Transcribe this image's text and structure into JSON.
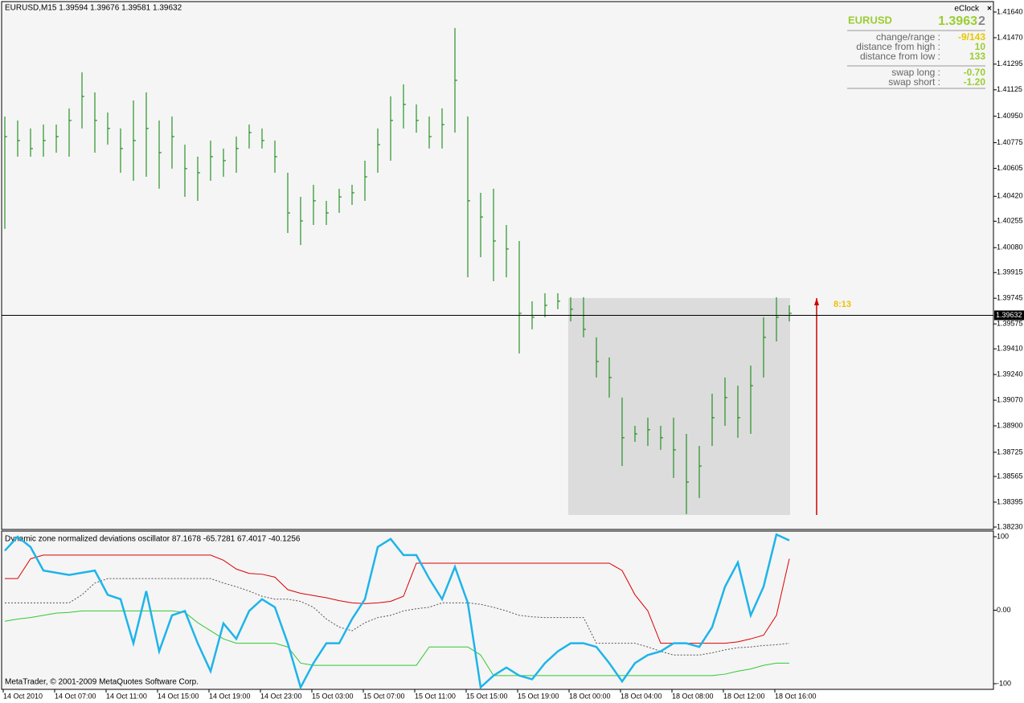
{
  "header": {
    "copyright": "MetaTrader, © 2001-2009 MetaQuotes Software Corp."
  },
  "eclock": {
    "title": "eClock",
    "close": "×",
    "symbol": "EURUSD",
    "price": "1.3963",
    "price_last": "2",
    "countdown": "8:13",
    "rows": [
      {
        "label": "change/range :",
        "value": "-9/143"
      },
      {
        "label": "distance from high :",
        "value": "10"
      },
      {
        "label": "distance from low :",
        "value": "133"
      },
      {
        "label": "swap long :",
        "value": "-0.70"
      },
      {
        "label": "swap short :",
        "value": "-1.20"
      }
    ]
  },
  "chart_data": [
    {
      "type": "ohlc",
      "title": "EURUSD,M15  1.39594 1.39676 1.39581 1.39632",
      "color": "#008000",
      "ylim": [
        1.38214,
        1.41709
      ],
      "yticks": [
        {
          "value": 1.4164,
          "label": "1.41640"
        },
        {
          "value": 1.4147,
          "label": "1.41470"
        },
        1.41295,
        1.41125,
        {
          "value": 1.4095,
          "label": "1.40950"
        },
        1.40775,
        1.40605,
        {
          "value": 1.4042,
          "label": "1.40420"
        },
        1.40255,
        {
          "value": 1.4008,
          "label": "1.40080"
        },
        1.39915,
        1.39745,
        1.39575,
        {
          "value": 1.3941,
          "label": "1.39410"
        },
        {
          "value": 1.3924,
          "label": "1.39240"
        },
        {
          "value": 1.3907,
          "label": "1.39070"
        },
        {
          "value": 1.389,
          "label": "1.38900"
        },
        1.38725,
        1.38565,
        1.38395,
        {
          "value": 1.3823,
          "label": "1.38230"
        }
      ],
      "last_price": 1.39632,
      "high": [
        1.40948,
        1.40922,
        1.40869,
        1.40895,
        1.40895,
        1.41002,
        1.41241,
        1.41108,
        1.40975,
        1.40869,
        1.41055,
        1.41108,
        1.40922,
        1.40948,
        1.40762,
        1.40682,
        1.40789,
        1.40736,
        1.40815,
        1.40895,
        1.40869,
        1.40789,
        1.40576,
        1.40416,
        1.40496,
        1.4039,
        1.4047,
        1.40496,
        1.40656,
        1.40869,
        1.41081,
        1.41161,
        1.41028,
        1.40948,
        1.41002,
        1.41534,
        1.40948,
        1.40443,
        1.4047,
        1.4023,
        1.40124,
        1.39725,
        1.39778,
        1.39778,
        1.39752,
        1.39752,
        1.39486,
        1.39353,
        1.39087,
        1.389,
        1.38954,
        1.389,
        1.38954,
        1.38847,
        1.38767,
        1.39113,
        1.3922,
        1.39166,
        1.39299,
        1.39619,
        1.39752,
        1.39698
      ],
      "low": [
        1.40204,
        1.40682,
        1.40682,
        1.40682,
        1.40709,
        1.40682,
        1.40869,
        1.40709,
        1.40762,
        1.40576,
        1.40523,
        1.40549,
        1.4047,
        1.40603,
        1.40416,
        1.4039,
        1.40523,
        1.40549,
        1.40576,
        1.40736,
        1.40736,
        1.40576,
        1.40177,
        1.40097,
        1.4023,
        1.4023,
        1.4031,
        1.40363,
        1.4039,
        1.40576,
        1.40656,
        1.40869,
        1.40842,
        1.40736,
        1.40736,
        1.40842,
        1.39884,
        1.40017,
        1.39858,
        1.39884,
        1.39379,
        1.39539,
        1.39619,
        1.39672,
        1.39592,
        1.39486,
        1.3922,
        1.39087,
        1.38634,
        1.38794,
        1.38767,
        1.38741,
        1.38555,
        1.38316,
        1.38422,
        1.38767,
        1.389,
        1.38821,
        1.38847,
        1.3922,
        1.39459,
        1.39592
      ],
      "close": [
        1.40815,
        1.40789,
        1.40736,
        1.40789,
        1.40815,
        1.40922,
        1.41081,
        1.40922,
        1.40869,
        1.40736,
        1.40789,
        1.40869,
        1.40709,
        1.40815,
        1.40603,
        1.40576,
        1.40682,
        1.40656,
        1.40736,
        1.40842,
        1.40789,
        1.40682,
        1.4031,
        1.40257,
        1.4039,
        1.4031,
        1.40416,
        1.40443,
        1.40549,
        1.40762,
        1.40922,
        1.41028,
        1.40922,
        1.40815,
        1.40895,
        1.41188,
        1.4039,
        1.40283,
        1.40124,
        1.40071,
        1.39645,
        1.39619,
        1.39698,
        1.39725,
        1.39672,
        1.39539,
        1.39326,
        1.3922,
        1.38821,
        1.38847,
        1.38874,
        1.38821,
        1.38741,
        1.38528,
        1.38634,
        1.38954,
        1.39087,
        1.38954,
        1.39166,
        1.39486,
        1.39619,
        1.39645
      ]
    },
    {
      "type": "line",
      "title": "Dynamic zone normalized deviations oscillator 87.1678 -65.7281 67.4017 -40.1256",
      "ylim": [
        -107.7,
        107.7
      ],
      "yticks": [
        100,
        {
          "value": 0,
          "label": "0.00"
        },
        -100
      ],
      "categories": [
        "14 Oct 2010",
        null,
        null,
        null,
        "14 Oct 07:00",
        null,
        null,
        null,
        "14 Oct 11:00",
        null,
        null,
        null,
        "14 Oct 15:00",
        null,
        null,
        null,
        "14 Oct 19:00",
        null,
        null,
        null,
        "14 Oct 23:00",
        null,
        null,
        null,
        "15 Oct 03:00",
        null,
        null,
        null,
        "15 Oct 07:00",
        null,
        null,
        null,
        "15 Oct 11:00",
        null,
        null,
        null,
        "15 Oct 15:00",
        null,
        null,
        null,
        "15 Oct 19:00",
        null,
        null,
        null,
        "18 Oct 00:00",
        null,
        null,
        null,
        "18 Oct 04:00",
        null,
        null,
        null,
        "18 Oct 08:00",
        null,
        null,
        null,
        "18 Oct 12:00",
        null,
        null,
        null,
        "18 Oct 16:00",
        null
      ],
      "series": [
        {
          "color": "#dd0000",
          "style": "thin",
          "values": [
            43,
            43,
            70,
            75,
            75,
            75,
            75,
            75,
            75,
            75,
            75,
            75,
            75,
            75,
            75,
            75,
            75,
            68,
            56,
            50,
            49,
            45,
            28,
            23,
            20,
            17,
            13,
            10,
            9,
            10,
            12,
            19,
            64,
            64,
            64,
            64,
            64,
            64,
            64,
            64,
            64,
            64,
            64,
            64,
            64,
            64,
            64,
            64,
            54,
            21,
            -1,
            -45,
            -45,
            -45,
            -45,
            -45,
            -45,
            -43,
            -39,
            -34,
            -7,
            70
          ]
        },
        {
          "color": "#555555",
          "style": "dotted",
          "values": [
            10,
            10,
            10,
            10,
            10,
            10,
            21,
            37,
            43,
            43,
            43,
            43,
            43,
            43,
            43,
            43,
            43,
            37,
            32,
            26,
            19,
            15,
            15,
            12,
            4,
            -12,
            -23,
            -28,
            -17,
            -10,
            -7,
            -1,
            2,
            4,
            10,
            10,
            10,
            8,
            4,
            -1,
            -7,
            -9,
            -10,
            -10,
            -10,
            -10,
            -45,
            -45,
            -45,
            -45,
            -50,
            -56,
            -61,
            -61,
            -61,
            -58,
            -54,
            -51,
            -50,
            -48,
            -47,
            -45
          ]
        },
        {
          "color": "#32c832",
          "style": "thin",
          "values": [
            -15,
            -12,
            -10,
            -7,
            -4,
            -3,
            -1,
            -1,
            -1,
            -1,
            -1,
            -1,
            -1,
            -1,
            -3,
            -17,
            -28,
            -39,
            -45,
            -45,
            -45,
            -45,
            -50,
            -72,
            -75,
            -75,
            -75,
            -75,
            -75,
            -75,
            -75,
            -75,
            -75,
            -50,
            -50,
            -50,
            -50,
            -61,
            -89,
            -89,
            -89,
            -89,
            -89,
            -89,
            -89,
            -89,
            -89,
            -89,
            -89,
            -89,
            -89,
            -89,
            -89,
            -89,
            -89,
            -89,
            -87,
            -83,
            -80,
            -75,
            -72,
            -72
          ]
        },
        {
          "color": "#1eb4ea",
          "style": "thick",
          "values": [
            81,
            100,
            86,
            54,
            51,
            48,
            51,
            54,
            21,
            15,
            -45,
            26,
            -56,
            -7,
            -1,
            -45,
            -83,
            -18,
            -39,
            -1,
            15,
            4,
            -45,
            -105,
            -72,
            -45,
            -45,
            -12,
            15,
            86,
            97,
            75,
            75,
            43,
            15,
            59,
            10,
            -105,
            -89,
            -78,
            -89,
            -94,
            -72,
            -56,
            -45,
            -45,
            -50,
            -72,
            -97,
            -72,
            -61,
            -56,
            -45,
            -45,
            -50,
            -23,
            32,
            65,
            -7,
            32,
            103,
            95
          ]
        }
      ]
    }
  ]
}
